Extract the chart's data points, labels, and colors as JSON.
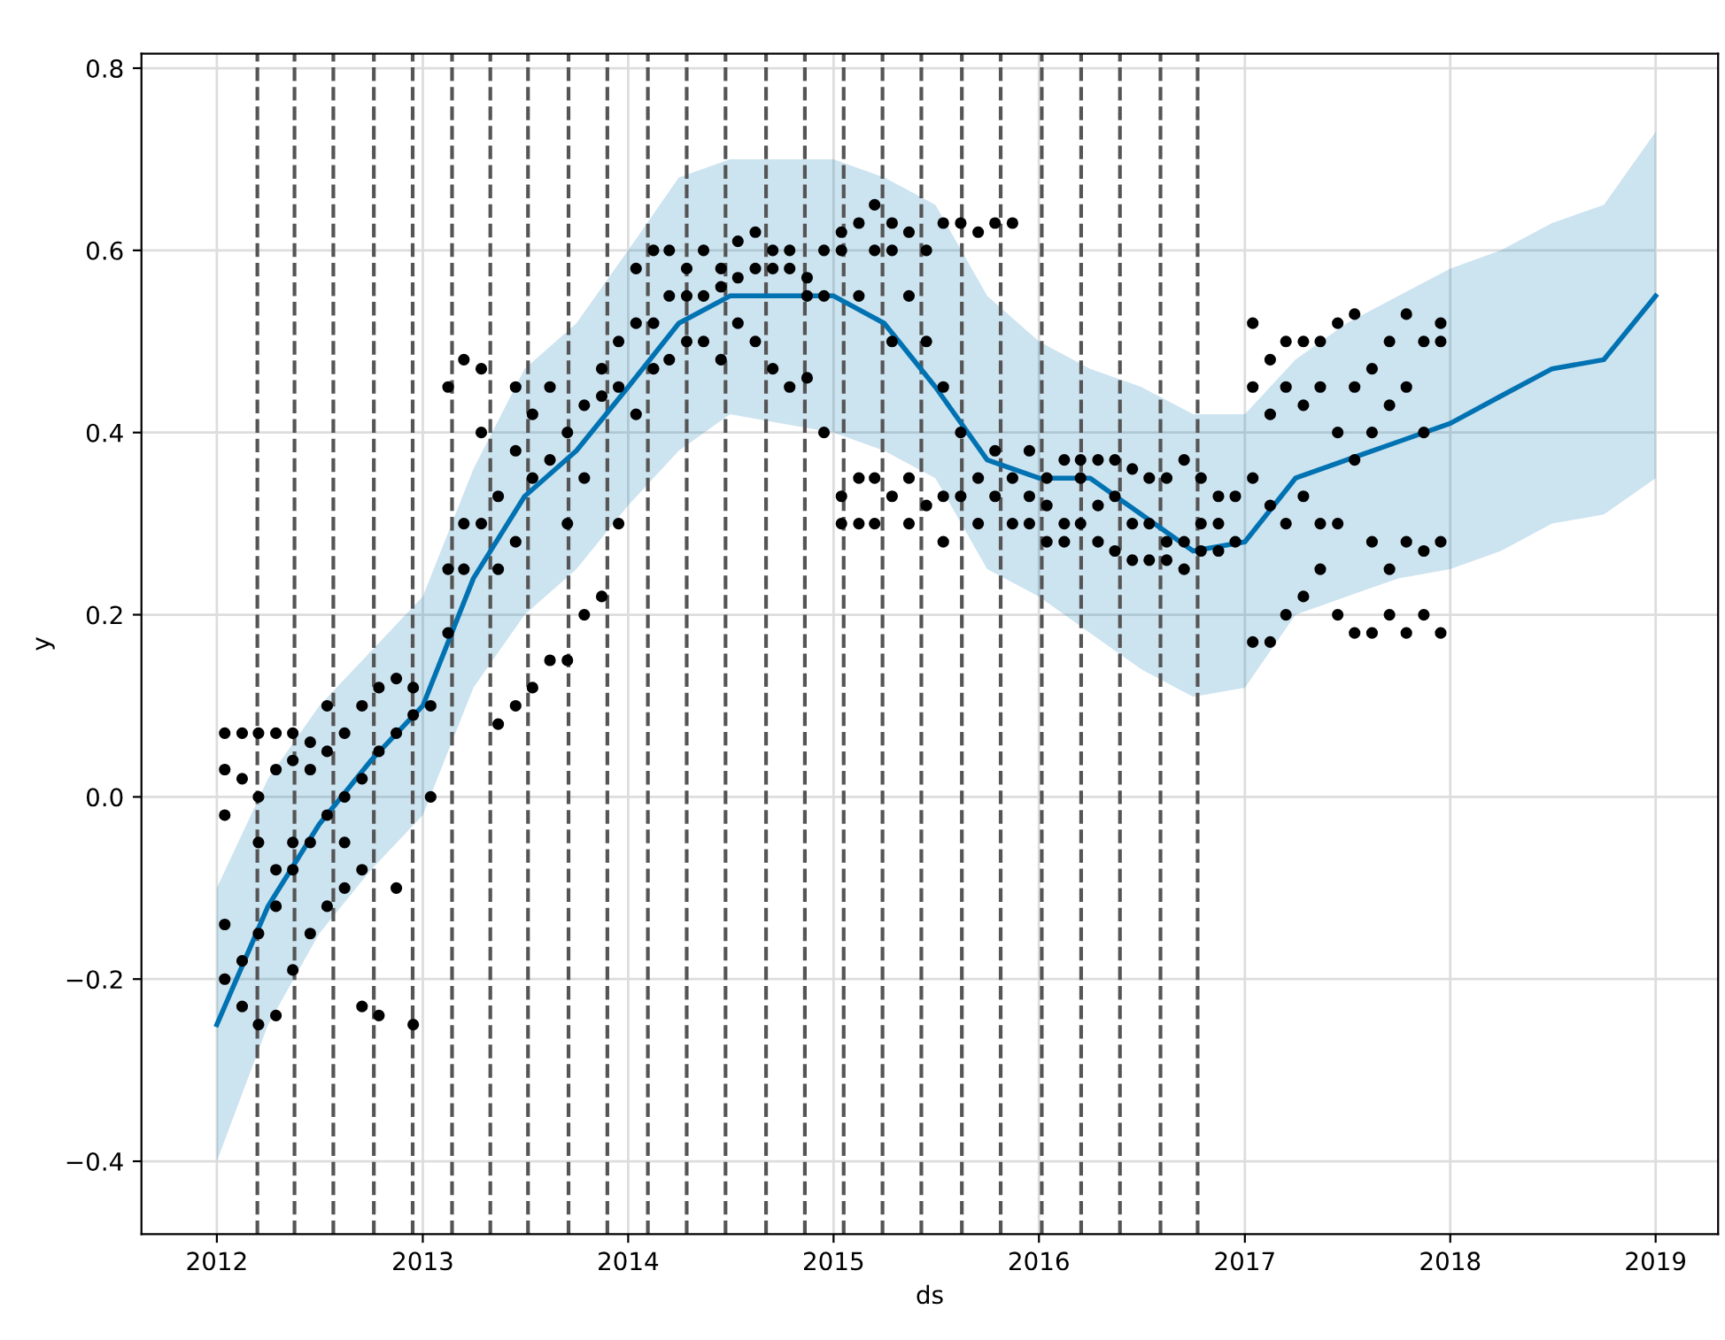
{
  "chart_data": {
    "type": "scatter",
    "xlabel": "ds",
    "ylabel": "y",
    "grid": true,
    "legend": false,
    "xlim": [
      "2011-08-20",
      "2019-04-22"
    ],
    "ylim": [
      -0.48,
      0.816
    ],
    "xticks": [
      {
        "value": "2012-01-01",
        "label": "2012"
      },
      {
        "value": "2013-01-01",
        "label": "2013"
      },
      {
        "value": "2014-01-01",
        "label": "2014"
      },
      {
        "value": "2015-01-01",
        "label": "2015"
      },
      {
        "value": "2016-01-01",
        "label": "2016"
      },
      {
        "value": "2017-01-01",
        "label": "2017"
      },
      {
        "value": "2018-01-01",
        "label": "2018"
      },
      {
        "value": "2019-01-01",
        "label": "2019"
      }
    ],
    "yticks": [
      {
        "value": -0.4,
        "label": "−0.4"
      },
      {
        "value": -0.2,
        "label": "−0.2"
      },
      {
        "value": 0.0,
        "label": "0.0"
      },
      {
        "value": 0.2,
        "label": "0.2"
      },
      {
        "value": 0.4,
        "label": "0.4"
      },
      {
        "value": 0.6,
        "label": "0.6"
      },
      {
        "value": 0.8,
        "label": "0.8"
      }
    ],
    "series": [
      {
        "type": "line",
        "color": "#0072b2",
        "marker": "none",
        "line_style": "solid",
        "x": [
          "2012-01-01",
          "2012-04-01",
          "2012-07-01",
          "2012-10-01",
          "2013-01-01",
          "2013-04-01",
          "2013-07-01",
          "2013-10-01",
          "2014-01-01",
          "2014-04-01",
          "2014-07-01",
          "2014-10-01",
          "2015-01-01",
          "2015-04-01",
          "2015-07-01",
          "2015-10-01",
          "2016-01-01",
          "2016-04-01",
          "2016-07-01",
          "2016-10-01",
          "2017-01-01",
          "2017-04-01",
          "2017-07-01",
          "2017-10-01",
          "2018-01-01",
          "2018-04-01",
          "2018-07-01",
          "2018-10-01",
          "2019-01-01"
        ],
        "values": [
          -0.25,
          -0.12,
          -0.03,
          0.04,
          0.1,
          0.24,
          0.33,
          0.38,
          0.45,
          0.52,
          0.55,
          0.55,
          0.55,
          0.52,
          0.45,
          0.37,
          0.35,
          0.35,
          0.31,
          0.27,
          0.28,
          0.35,
          0.37,
          0.39,
          0.41,
          0.44,
          0.47,
          0.48,
          0.55
        ],
        "lower": [
          -0.4,
          -0.25,
          -0.15,
          -0.08,
          -0.02,
          0.12,
          0.2,
          0.25,
          0.32,
          0.38,
          0.42,
          0.41,
          0.4,
          0.38,
          0.35,
          0.25,
          0.22,
          0.18,
          0.14,
          0.11,
          0.12,
          0.2,
          0.22,
          0.24,
          0.25,
          0.27,
          0.3,
          0.31,
          0.35
        ],
        "upper": [
          -0.1,
          0.02,
          0.1,
          0.16,
          0.22,
          0.36,
          0.47,
          0.52,
          0.6,
          0.68,
          0.7,
          0.7,
          0.7,
          0.68,
          0.65,
          0.55,
          0.5,
          0.47,
          0.45,
          0.42,
          0.42,
          0.48,
          0.52,
          0.55,
          0.58,
          0.6,
          0.63,
          0.65,
          0.73
        ]
      },
      {
        "color": "#000000",
        "marker": "circle",
        "x": [
          "2012-01-15",
          "2012-01-15",
          "2012-01-15",
          "2012-01-15",
          "2012-01-15",
          "2012-02-15",
          "2012-02-15",
          "2012-02-15",
          "2012-02-15",
          "2012-03-15",
          "2012-03-15",
          "2012-03-15",
          "2012-03-15",
          "2012-03-15",
          "2012-04-15",
          "2012-04-15",
          "2012-04-15",
          "2012-04-15",
          "2012-04-15",
          "2012-05-15",
          "2012-05-15",
          "2012-05-15",
          "2012-05-15",
          "2012-05-15",
          "2012-06-15",
          "2012-06-15",
          "2012-06-15",
          "2012-06-15",
          "2012-07-15",
          "2012-07-15",
          "2012-07-15",
          "2012-07-15",
          "2012-08-15",
          "2012-08-15",
          "2012-08-15",
          "2012-08-15",
          "2012-09-15",
          "2012-09-15",
          "2012-09-15",
          "2012-09-15",
          "2012-10-15",
          "2012-10-15",
          "2012-10-15",
          "2012-11-15",
          "2012-11-15",
          "2012-11-15",
          "2012-12-15",
          "2012-12-15",
          "2012-12-15",
          "2013-01-15",
          "2013-01-15",
          "2013-02-15",
          "2013-02-15",
          "2013-02-15",
          "2013-03-15",
          "2013-03-15",
          "2013-03-15",
          "2013-04-15",
          "2013-04-15",
          "2013-04-15",
          "2013-05-15",
          "2013-05-15",
          "2013-05-15",
          "2013-06-15",
          "2013-06-15",
          "2013-06-15",
          "2013-06-15",
          "2013-07-15",
          "2013-07-15",
          "2013-07-15",
          "2013-08-15",
          "2013-08-15",
          "2013-08-15",
          "2013-09-15",
          "2013-09-15",
          "2013-09-15",
          "2013-10-15",
          "2013-10-15",
          "2013-10-15",
          "2013-11-15",
          "2013-11-15",
          "2013-11-15",
          "2013-12-15",
          "2013-12-15",
          "2013-12-15",
          "2014-01-15",
          "2014-01-15",
          "2014-01-15",
          "2014-02-15",
          "2014-02-15",
          "2014-02-15",
          "2014-03-15",
          "2014-03-15",
          "2014-03-15",
          "2014-04-15",
          "2014-04-15",
          "2014-04-15",
          "2014-05-15",
          "2014-05-15",
          "2014-05-15",
          "2014-06-15",
          "2014-06-15",
          "2014-06-15",
          "2014-07-15",
          "2014-07-15",
          "2014-07-15",
          "2014-08-15",
          "2014-08-15",
          "2014-08-15",
          "2014-09-15",
          "2014-09-15",
          "2014-09-15",
          "2014-10-15",
          "2014-10-15",
          "2014-10-15",
          "2014-11-15",
          "2014-11-15",
          "2014-11-15",
          "2014-12-15",
          "2014-12-15",
          "2014-12-15",
          "2015-01-15",
          "2015-01-15",
          "2015-01-15",
          "2015-01-15",
          "2015-02-15",
          "2015-02-15",
          "2015-02-15",
          "2015-02-15",
          "2015-03-15",
          "2015-03-15",
          "2015-03-15",
          "2015-03-15",
          "2015-04-15",
          "2015-04-15",
          "2015-04-15",
          "2015-04-15",
          "2015-05-15",
          "2015-05-15",
          "2015-05-15",
          "2015-05-15",
          "2015-06-15",
          "2015-06-15",
          "2015-06-15",
          "2015-07-15",
          "2015-07-15",
          "2015-07-15",
          "2015-07-15",
          "2015-08-15",
          "2015-08-15",
          "2015-08-15",
          "2015-09-15",
          "2015-09-15",
          "2015-09-15",
          "2015-10-15",
          "2015-10-15",
          "2015-10-15",
          "2015-11-15",
          "2015-11-15",
          "2015-11-15",
          "2015-12-15",
          "2015-12-15",
          "2015-12-15",
          "2016-01-15",
          "2016-01-15",
          "2016-01-15",
          "2016-02-15",
          "2016-02-15",
          "2016-02-15",
          "2016-03-15",
          "2016-03-15",
          "2016-03-15",
          "2016-04-15",
          "2016-04-15",
          "2016-04-15",
          "2016-05-15",
          "2016-05-15",
          "2016-05-15",
          "2016-06-15",
          "2016-06-15",
          "2016-06-15",
          "2016-07-15",
          "2016-07-15",
          "2016-07-15",
          "2016-08-15",
          "2016-08-15",
          "2016-08-15",
          "2016-09-15",
          "2016-09-15",
          "2016-09-15",
          "2016-10-15",
          "2016-10-15",
          "2016-10-15",
          "2016-11-15",
          "2016-11-15",
          "2016-11-15",
          "2016-12-15",
          "2016-12-15",
          "2017-01-15",
          "2017-01-15",
          "2017-01-15",
          "2017-01-15",
          "2017-02-15",
          "2017-02-15",
          "2017-02-15",
          "2017-02-15",
          "2017-03-15",
          "2017-03-15",
          "2017-03-15",
          "2017-03-15",
          "2017-04-15",
          "2017-04-15",
          "2017-04-15",
          "2017-04-15",
          "2017-05-15",
          "2017-05-15",
          "2017-05-15",
          "2017-05-15",
          "2017-06-15",
          "2017-06-15",
          "2017-06-15",
          "2017-06-15",
          "2017-07-15",
          "2017-07-15",
          "2017-07-15",
          "2017-07-15",
          "2017-08-15",
          "2017-08-15",
          "2017-08-15",
          "2017-08-15",
          "2017-09-15",
          "2017-09-15",
          "2017-09-15",
          "2017-09-15",
          "2017-10-15",
          "2017-10-15",
          "2017-10-15",
          "2017-10-15",
          "2017-11-15",
          "2017-11-15",
          "2017-11-15",
          "2017-11-15",
          "2017-12-15",
          "2017-12-15",
          "2017-12-15",
          "2017-12-15"
        ],
        "values": [
          -0.2,
          -0.14,
          0.07,
          0.03,
          -0.02,
          -0.23,
          -0.18,
          0.07,
          0.02,
          -0.15,
          -0.25,
          0.07,
          -0.05,
          0.0,
          -0.12,
          -0.24,
          0.07,
          0.03,
          -0.08,
          -0.08,
          -0.19,
          0.07,
          0.04,
          -0.05,
          -0.05,
          -0.15,
          0.06,
          0.03,
          -0.02,
          -0.12,
          0.05,
          0.1,
          0.0,
          -0.1,
          0.07,
          -0.05,
          0.02,
          -0.23,
          0.1,
          -0.08,
          0.05,
          -0.24,
          0.12,
          0.07,
          -0.1,
          0.13,
          0.09,
          -0.25,
          0.12,
          0.1,
          0.0,
          0.18,
          0.25,
          0.45,
          0.25,
          0.48,
          0.3,
          0.3,
          0.4,
          0.47,
          0.33,
          0.08,
          0.25,
          0.38,
          0.1,
          0.45,
          0.28,
          0.35,
          0.42,
          0.12,
          0.37,
          0.15,
          0.45,
          0.4,
          0.3,
          0.15,
          0.43,
          0.35,
          0.2,
          0.44,
          0.47,
          0.22,
          0.5,
          0.45,
          0.3,
          0.52,
          0.58,
          0.42,
          0.52,
          0.6,
          0.47,
          0.55,
          0.6,
          0.48,
          0.55,
          0.58,
          0.5,
          0.55,
          0.6,
          0.5,
          0.56,
          0.58,
          0.48,
          0.57,
          0.61,
          0.52,
          0.58,
          0.62,
          0.5,
          0.6,
          0.58,
          0.47,
          0.58,
          0.6,
          0.45,
          0.57,
          0.55,
          0.46,
          0.6,
          0.55,
          0.4,
          0.6,
          0.33,
          0.3,
          0.62,
          0.63,
          0.3,
          0.35,
          0.55,
          0.65,
          0.3,
          0.6,
          0.35,
          0.6,
          0.33,
          0.63,
          0.5,
          0.55,
          0.3,
          0.62,
          0.35,
          0.5,
          0.32,
          0.6,
          0.45,
          0.33,
          0.63,
          0.28,
          0.4,
          0.33,
          0.63,
          0.35,
          0.3,
          0.62,
          0.33,
          0.38,
          0.63,
          0.35,
          0.3,
          0.63,
          0.33,
          0.3,
          0.38,
          0.32,
          0.35,
          0.28,
          0.3,
          0.37,
          0.28,
          0.35,
          0.3,
          0.37,
          0.32,
          0.37,
          0.28,
          0.33,
          0.37,
          0.27,
          0.3,
          0.36,
          0.26,
          0.3,
          0.35,
          0.26,
          0.28,
          0.35,
          0.26,
          0.28,
          0.37,
          0.25,
          0.3,
          0.35,
          0.27,
          0.3,
          0.33,
          0.27,
          0.28,
          0.33,
          0.17,
          0.45,
          0.52,
          0.35,
          0.17,
          0.42,
          0.48,
          0.32,
          0.2,
          0.45,
          0.5,
          0.3,
          0.22,
          0.43,
          0.5,
          0.33,
          0.25,
          0.45,
          0.5,
          0.3,
          0.3,
          0.4,
          0.52,
          0.2,
          0.37,
          0.45,
          0.53,
          0.18,
          0.4,
          0.47,
          0.28,
          0.18,
          0.43,
          0.5,
          0.25,
          0.2,
          0.45,
          0.53,
          0.28,
          0.18,
          0.4,
          0.5,
          0.27,
          0.2,
          0.5,
          0.52,
          0.18,
          0.28
        ]
      }
    ],
    "ref_lines": [
      {
        "axis": "x",
        "value": "2012-03-13",
        "color": "#555555",
        "line_style": "dashed"
      },
      {
        "axis": "x",
        "value": "2012-05-18",
        "color": "#555555",
        "line_style": "dashed"
      },
      {
        "axis": "x",
        "value": "2012-07-26",
        "color": "#555555",
        "line_style": "dashed"
      },
      {
        "axis": "x",
        "value": "2012-10-06",
        "color": "#555555",
        "line_style": "dashed"
      },
      {
        "axis": "x",
        "value": "2012-12-14",
        "color": "#555555",
        "line_style": "dashed"
      },
      {
        "axis": "x",
        "value": "2013-02-22",
        "color": "#555555",
        "line_style": "dashed"
      },
      {
        "axis": "x",
        "value": "2013-05-01",
        "color": "#555555",
        "line_style": "dashed"
      },
      {
        "axis": "x",
        "value": "2013-07-07",
        "color": "#555555",
        "line_style": "dashed"
      },
      {
        "axis": "x",
        "value": "2013-09-17",
        "color": "#555555",
        "line_style": "dashed"
      },
      {
        "axis": "x",
        "value": "2013-11-25",
        "color": "#555555",
        "line_style": "dashed"
      },
      {
        "axis": "x",
        "value": "2014-02-05",
        "color": "#555555",
        "line_style": "dashed"
      },
      {
        "axis": "x",
        "value": "2014-04-15",
        "color": "#555555",
        "line_style": "dashed"
      },
      {
        "axis": "x",
        "value": "2014-06-23",
        "color": "#555555",
        "line_style": "dashed"
      },
      {
        "axis": "x",
        "value": "2014-09-03",
        "color": "#555555",
        "line_style": "dashed"
      },
      {
        "axis": "x",
        "value": "2014-11-11",
        "color": "#555555",
        "line_style": "dashed"
      },
      {
        "axis": "x",
        "value": "2015-01-19",
        "color": "#555555",
        "line_style": "dashed"
      },
      {
        "axis": "x",
        "value": "2015-03-29",
        "color": "#555555",
        "line_style": "dashed"
      },
      {
        "axis": "x",
        "value": "2015-06-06",
        "color": "#555555",
        "line_style": "dashed"
      },
      {
        "axis": "x",
        "value": "2015-08-17",
        "color": "#555555",
        "line_style": "dashed"
      },
      {
        "axis": "x",
        "value": "2015-10-25",
        "color": "#555555",
        "line_style": "dashed"
      },
      {
        "axis": "x",
        "value": "2016-01-06",
        "color": "#555555",
        "line_style": "dashed"
      },
      {
        "axis": "x",
        "value": "2016-03-16",
        "color": "#555555",
        "line_style": "dashed"
      },
      {
        "axis": "x",
        "value": "2016-05-24",
        "color": "#555555",
        "line_style": "dashed"
      },
      {
        "axis": "x",
        "value": "2016-08-04",
        "color": "#555555",
        "line_style": "dashed"
      },
      {
        "axis": "x",
        "value": "2016-10-09",
        "color": "#555555",
        "line_style": "dashed"
      }
    ]
  }
}
